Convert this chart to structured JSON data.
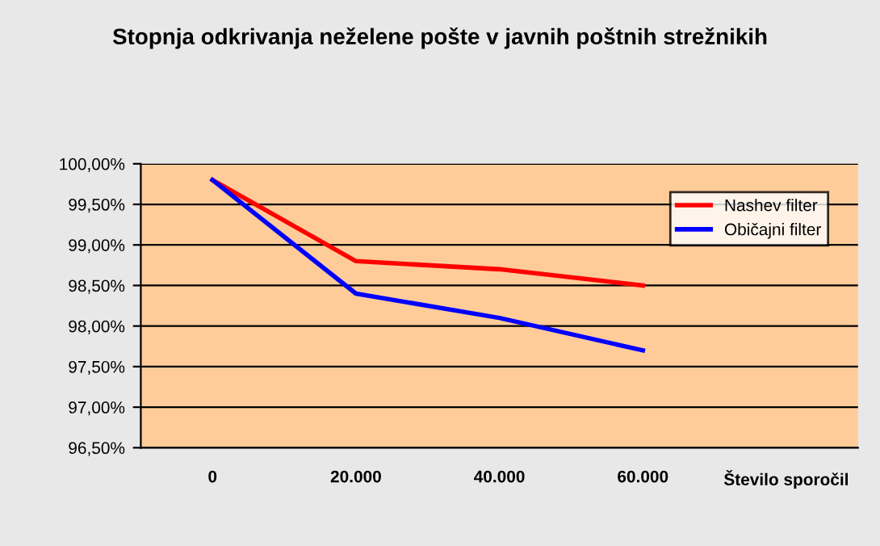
{
  "chart_data": {
    "type": "line",
    "title": "Stopnja odkrivanja neželene pošte v javnih poštnih strežnikih",
    "categories": [
      "0",
      "20.000",
      "40.000",
      "60.000",
      "Število sporočil"
    ],
    "series": [
      {
        "name": "Nashev filter",
        "color": "#ff0000",
        "values": [
          99.8,
          98.8,
          98.7,
          98.5,
          null
        ]
      },
      {
        "name": "Običajni filter",
        "color": "#0000ff",
        "values": [
          99.8,
          98.4,
          98.1,
          97.7,
          null
        ]
      }
    ],
    "ylim": [
      96.5,
      100
    ],
    "yticks": [
      {
        "value": 96.5,
        "label": "96,50%"
      },
      {
        "value": 97.0,
        "label": "97,00%"
      },
      {
        "value": 97.5,
        "label": "97,50%"
      },
      {
        "value": 98.0,
        "label": "98,00%"
      },
      {
        "value": 98.5,
        "label": "98,50%"
      },
      {
        "value": 99.0,
        "label": "99,00%"
      },
      {
        "value": 99.5,
        "label": "99,50%"
      },
      {
        "value": 100.0,
        "label": "100,00%"
      }
    ],
    "grid": "y",
    "legend": "top right",
    "marker": "none",
    "line_style": "solid"
  }
}
